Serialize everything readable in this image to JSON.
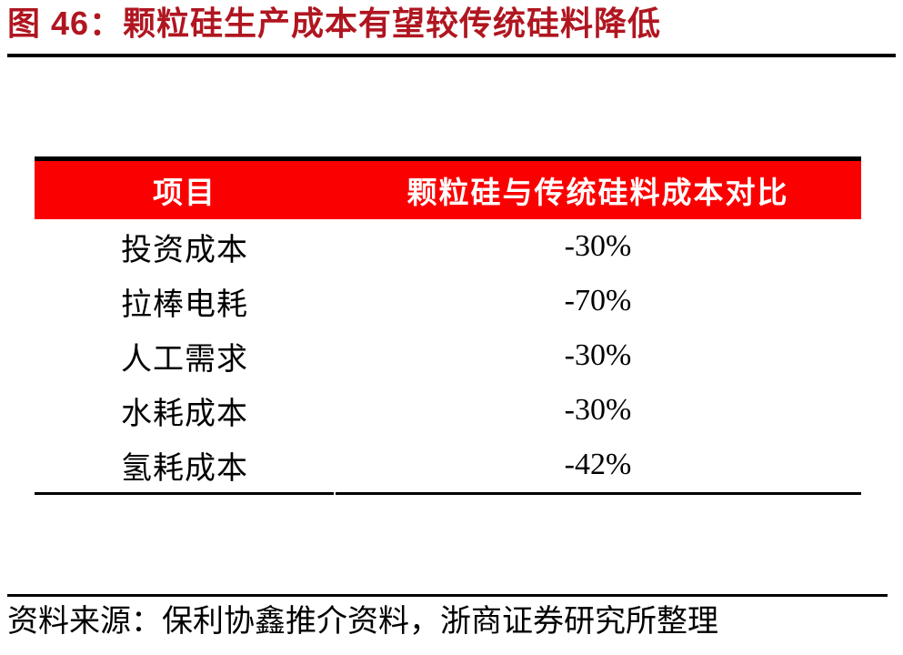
{
  "figure": {
    "title": "图 46：颗粒硅生产成本有望较传统硅料降低"
  },
  "table": {
    "header": {
      "col1": "项目",
      "col2": "颗粒硅与传统硅料成本对比"
    },
    "rows": [
      {
        "item": "投资成本",
        "value": "-30%"
      },
      {
        "item": "拉棒电耗",
        "value": "-70%"
      },
      {
        "item": "人工需求",
        "value": "-30%"
      },
      {
        "item": "水耗成本",
        "value": "-30%"
      },
      {
        "item": "氢耗成本",
        "value": "-42%"
      }
    ]
  },
  "source": {
    "text": "资料来源：保利协鑫推介资料，浙商证券研究所整理"
  },
  "colors": {
    "title_red": "#b01620",
    "header_bg": "#fb0000",
    "header_text": "#ffffff",
    "body_text": "#000000"
  }
}
